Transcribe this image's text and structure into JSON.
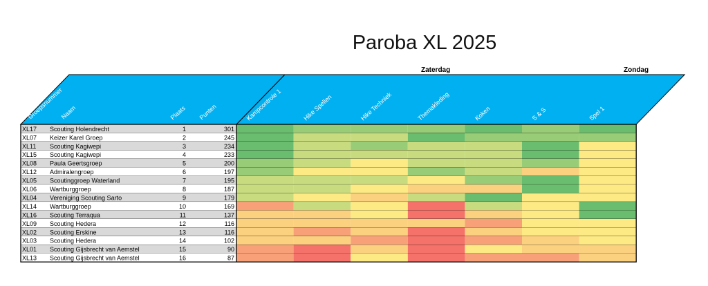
{
  "title": "Paroba XL 2025",
  "days": [
    {
      "label": "Zaterdag"
    },
    {
      "label": "Zondag"
    }
  ],
  "chart_data": {
    "type": "heatmap",
    "title": "Paroba XL 2025",
    "column_headers": [
      "Groepsnummer",
      "Naam",
      "Plaats",
      "Punten"
    ],
    "categories": [
      "Kampcontrole 1",
      "Hike Spellen",
      "Hike Techniek",
      "Themakleding",
      "Koken",
      "S & S",
      "Spel 1"
    ],
    "scale_colors": [
      "#f4726a",
      "#f8a178",
      "#fbd07f",
      "#fdea84",
      "#c8dc7f",
      "#99cc76",
      "#6abd6e"
    ],
    "rows": [
      {
        "id": "XL17",
        "name": "Scouting Holendrecht",
        "place": 1,
        "points": 301,
        "scores": [
          6,
          5,
          5,
          5,
          6,
          5,
          6
        ]
      },
      {
        "id": "XL07",
        "name": "Keizer Karel Groep",
        "place": 2,
        "points": 245,
        "scores": [
          6,
          4,
          4,
          6,
          5,
          5,
          5
        ]
      },
      {
        "id": "XL11",
        "name": "Scouting Kagiwepi",
        "place": 3,
        "points": 234,
        "scores": [
          6,
          4,
          5,
          4,
          4,
          6,
          3
        ]
      },
      {
        "id": "XL15",
        "name": "Scouting Kagiwepi",
        "place": 4,
        "points": 233,
        "scores": [
          6,
          4,
          4,
          4,
          4,
          6,
          3
        ]
      },
      {
        "id": "XL08",
        "name": "Paula Geertsgroep",
        "place": 5,
        "points": 200,
        "scores": [
          5,
          4,
          3,
          4,
          4,
          5,
          3
        ]
      },
      {
        "id": "XL12",
        "name": "Admiralengroep",
        "place": 6,
        "points": 197,
        "scores": [
          5,
          3,
          3,
          5,
          4,
          2,
          3
        ]
      },
      {
        "id": "XL05",
        "name": "Scoutinggroep Waterland",
        "place": 7,
        "points": 195,
        "scores": [
          4,
          4,
          4,
          3,
          5,
          6,
          3
        ]
      },
      {
        "id": "XL06",
        "name": "Wartburggroep",
        "place": 8,
        "points": 187,
        "scores": [
          4,
          4,
          3,
          2,
          2,
          6,
          3
        ]
      },
      {
        "id": "XL04",
        "name": "Vereniging Scouting Sarto",
        "place": 9,
        "points": 179,
        "scores": [
          4,
          3,
          2,
          4,
          6,
          3,
          3
        ]
      },
      {
        "id": "XL14",
        "name": "Wartburggroep",
        "place": 10,
        "points": 169,
        "scores": [
          1,
          4,
          3,
          0,
          4,
          3,
          6
        ]
      },
      {
        "id": "XL16",
        "name": "Scouting Terraqua",
        "place": 11,
        "points": 137,
        "scores": [
          2,
          2,
          3,
          0,
          2,
          3,
          6
        ]
      },
      {
        "id": "XL09",
        "name": "Scouting Hedera",
        "place": 12,
        "points": 116,
        "scores": [
          2,
          2,
          2,
          2,
          1,
          3,
          3
        ]
      },
      {
        "id": "XL02",
        "name": "Scouting Erskine",
        "place": 13,
        "points": 116,
        "scores": [
          2,
          1,
          2,
          0,
          2,
          3,
          3
        ]
      },
      {
        "id": "XL03",
        "name": "Scouting Hedera",
        "place": 14,
        "points": 102,
        "scores": [
          2,
          2,
          1,
          0,
          1,
          2,
          3
        ]
      },
      {
        "id": "XL01",
        "name": "Scouting Gijsbrecht van Aemstel",
        "place": 15,
        "points": 90,
        "scores": [
          1,
          0,
          2,
          0,
          3,
          2,
          2
        ]
      },
      {
        "id": "XL13",
        "name": "Scouting Gijsbrecht van Aemstel",
        "place": 16,
        "points": 87,
        "scores": [
          1,
          0,
          3,
          0,
          1,
          1,
          2
        ]
      }
    ]
  }
}
